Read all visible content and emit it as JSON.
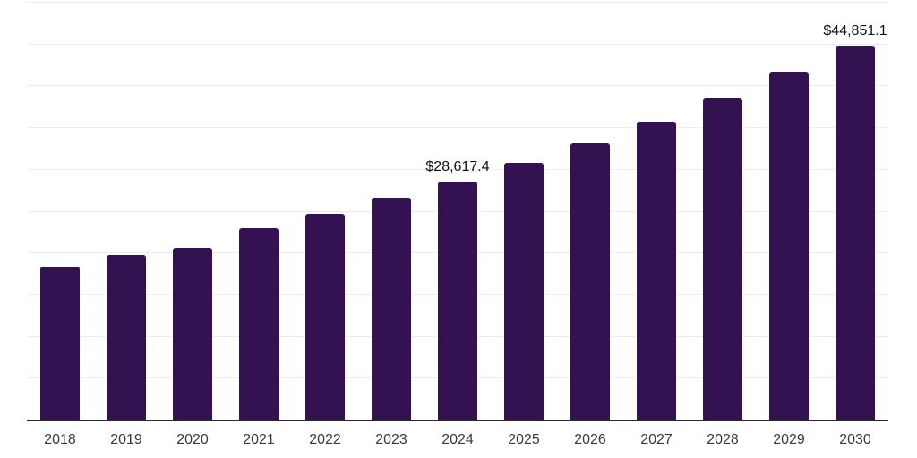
{
  "chart_data": {
    "type": "bar",
    "title": "",
    "xlabel": "",
    "ylabel": "",
    "categories": [
      "2018",
      "2019",
      "2020",
      "2021",
      "2022",
      "2023",
      "2024",
      "2025",
      "2026",
      "2027",
      "2028",
      "2029",
      "2030"
    ],
    "values": [
      18400,
      19850,
      20700,
      23050,
      24750,
      26650,
      28617.4,
      30850,
      33200,
      35750,
      38500,
      41600,
      44851.1
    ],
    "data_labels": {
      "2024": "$28,617.4",
      "2030": "$44,851.1"
    },
    "ylim": [
      0,
      50000
    ],
    "grid_step": 5000,
    "grid": true,
    "legend": false,
    "y_tick_labels_shown": false,
    "colors": {
      "bar": "#341150",
      "grid": "#ededed",
      "axis": "#2b2b2b",
      "tick_label": "#3a3a3a",
      "data_label": "#111111",
      "background": "#ffffff"
    }
  }
}
